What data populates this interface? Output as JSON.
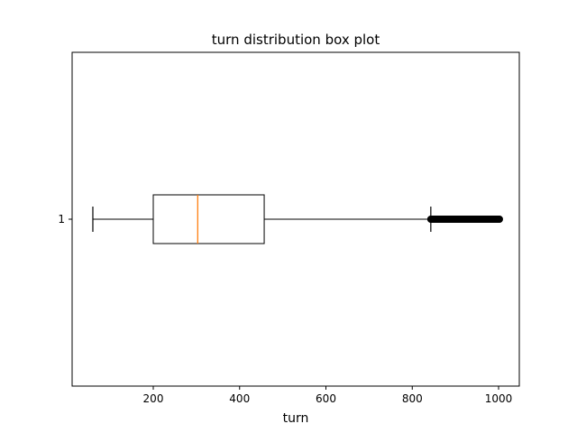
{
  "chart_data": {
    "type": "boxplot",
    "title": "turn distribution box plot",
    "xlabel": "turn",
    "ylabel": "",
    "orientation": "horizontal",
    "xlim": [
      12,
      1048
    ],
    "xticks": [
      200,
      400,
      600,
      800,
      1000
    ],
    "yticks": [
      "1"
    ],
    "grid": false,
    "series": [
      {
        "category": "1",
        "whisker_low": 60,
        "q1": 200,
        "median": 303,
        "q3": 457,
        "whisker_high": 843,
        "outliers_range": [
          843,
          1002
        ]
      }
    ],
    "colors": {
      "box": "#000000",
      "median": "#ff7f0e",
      "outlier": "#000000"
    }
  }
}
